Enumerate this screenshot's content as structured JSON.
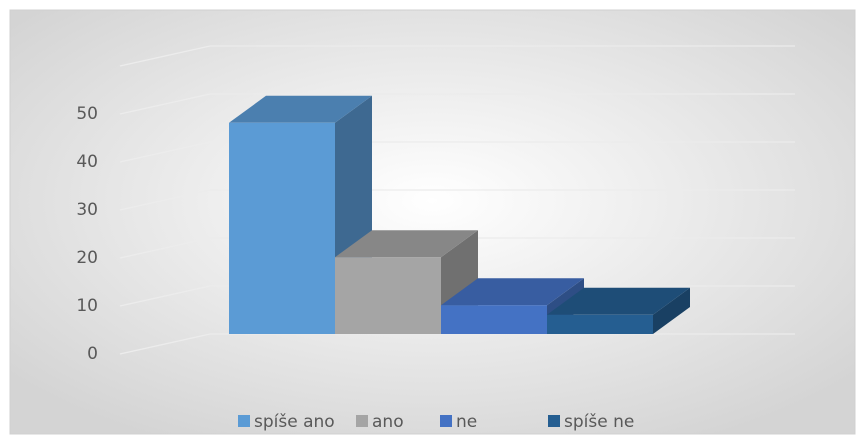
{
  "chart_data": {
    "type": "bar3d",
    "series": [
      {
        "name": "spíše ano",
        "color": "#5b9bd5",
        "values": [
          44
        ]
      },
      {
        "name": "ano",
        "color": "#a5a5a5",
        "values": [
          16
        ]
      },
      {
        "name": "ne",
        "color": "#4472c4",
        "values": [
          6
        ]
      },
      {
        "name": "spíše ne",
        "color": "#255e91",
        "values": [
          4
        ]
      }
    ],
    "ylim": [
      0,
      60
    ],
    "yticks": [
      0,
      10,
      20,
      30,
      40,
      50
    ],
    "grid": true,
    "legend": "bottom"
  }
}
